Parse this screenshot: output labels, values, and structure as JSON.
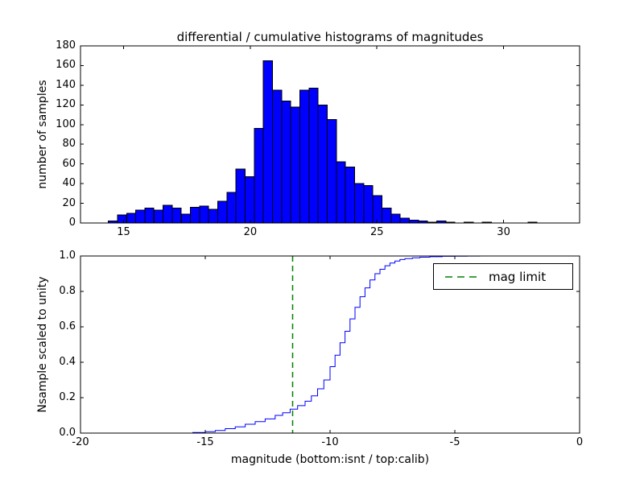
{
  "chart_data": [
    {
      "type": "bar",
      "title": "differential / cumulative histograms of magnitudes",
      "ylabel": "number of samples",
      "xlabel": "",
      "bar_color": "#0000ff",
      "bar_edge_color": "#000000",
      "xlim": [
        13.3,
        33.0
      ],
      "ylim": [
        0,
        180
      ],
      "xticks": [
        15,
        20,
        25,
        30
      ],
      "xtick_labels": [
        "15",
        "20",
        "25",
        "30"
      ],
      "yticks": [
        0,
        20,
        40,
        60,
        80,
        100,
        120,
        140,
        160,
        180
      ],
      "ytick_labels": [
        "0",
        "20",
        "40",
        "60",
        "80",
        "100",
        "120",
        "140",
        "160",
        "180"
      ],
      "bin_start": 14.4,
      "bin_width": 0.36,
      "values": [
        2,
        8,
        10,
        13,
        15,
        13,
        18,
        15,
        9,
        16,
        17,
        14,
        22,
        31,
        55,
        47,
        96,
        165,
        135,
        124,
        118,
        135,
        137,
        120,
        105,
        62,
        57,
        40,
        38,
        28,
        15,
        9,
        5,
        3,
        2,
        1,
        2,
        1,
        0,
        1,
        0,
        1,
        0,
        0,
        0,
        0,
        1,
        0
      ],
      "grid": false
    },
    {
      "type": "line",
      "title": "",
      "ylabel": "Nsample scaled to unity",
      "xlabel": "magnitude (bottom:isnt / top:calib)",
      "line_color": "#0000ff",
      "step": true,
      "xlim": [
        -20,
        0
      ],
      "ylim": [
        0,
        1
      ],
      "xticks": [
        -20,
        -15,
        -10,
        -5,
        0
      ],
      "xtick_labels": [
        "-20",
        "-15",
        "-10",
        "-5",
        "0"
      ],
      "yticks": [
        0,
        0.2,
        0.4,
        0.6,
        0.8,
        1.0
      ],
      "ytick_labels": [
        "0.0",
        "0.2",
        "0.4",
        "0.6",
        "0.8",
        "1.0"
      ],
      "x": [
        -16.0,
        -15.5,
        -15.0,
        -14.6,
        -14.2,
        -13.8,
        -13.4,
        -13.0,
        -12.6,
        -12.2,
        -11.9,
        -11.6,
        -11.3,
        -11.0,
        -10.75,
        -10.5,
        -10.25,
        -10.0,
        -9.8,
        -9.6,
        -9.4,
        -9.2,
        -9.0,
        -8.8,
        -8.6,
        -8.4,
        -8.2,
        -8.0,
        -7.8,
        -7.6,
        -7.4,
        -7.2,
        -7.0,
        -6.7,
        -6.4,
        -6.0,
        -5.5,
        -5.0,
        -4.5,
        -4.0,
        -3.5,
        -3.0,
        -2.5,
        -2.0
      ],
      "y": [
        0,
        0.003,
        0.008,
        0.015,
        0.025,
        0.035,
        0.05,
        0.065,
        0.08,
        0.1,
        0.115,
        0.135,
        0.155,
        0.18,
        0.21,
        0.25,
        0.3,
        0.375,
        0.44,
        0.51,
        0.575,
        0.645,
        0.71,
        0.77,
        0.82,
        0.865,
        0.9,
        0.925,
        0.945,
        0.96,
        0.972,
        0.98,
        0.985,
        0.99,
        0.993,
        0.996,
        0.998,
        0.999,
        0.9995,
        1.0,
        1.0,
        1.0,
        1.0,
        1.0
      ],
      "vline": {
        "x": -11.5,
        "color": "#008000",
        "style": "dashed"
      },
      "legend_label": "mag limit",
      "legend_position": "upper right",
      "grid": false
    }
  ]
}
